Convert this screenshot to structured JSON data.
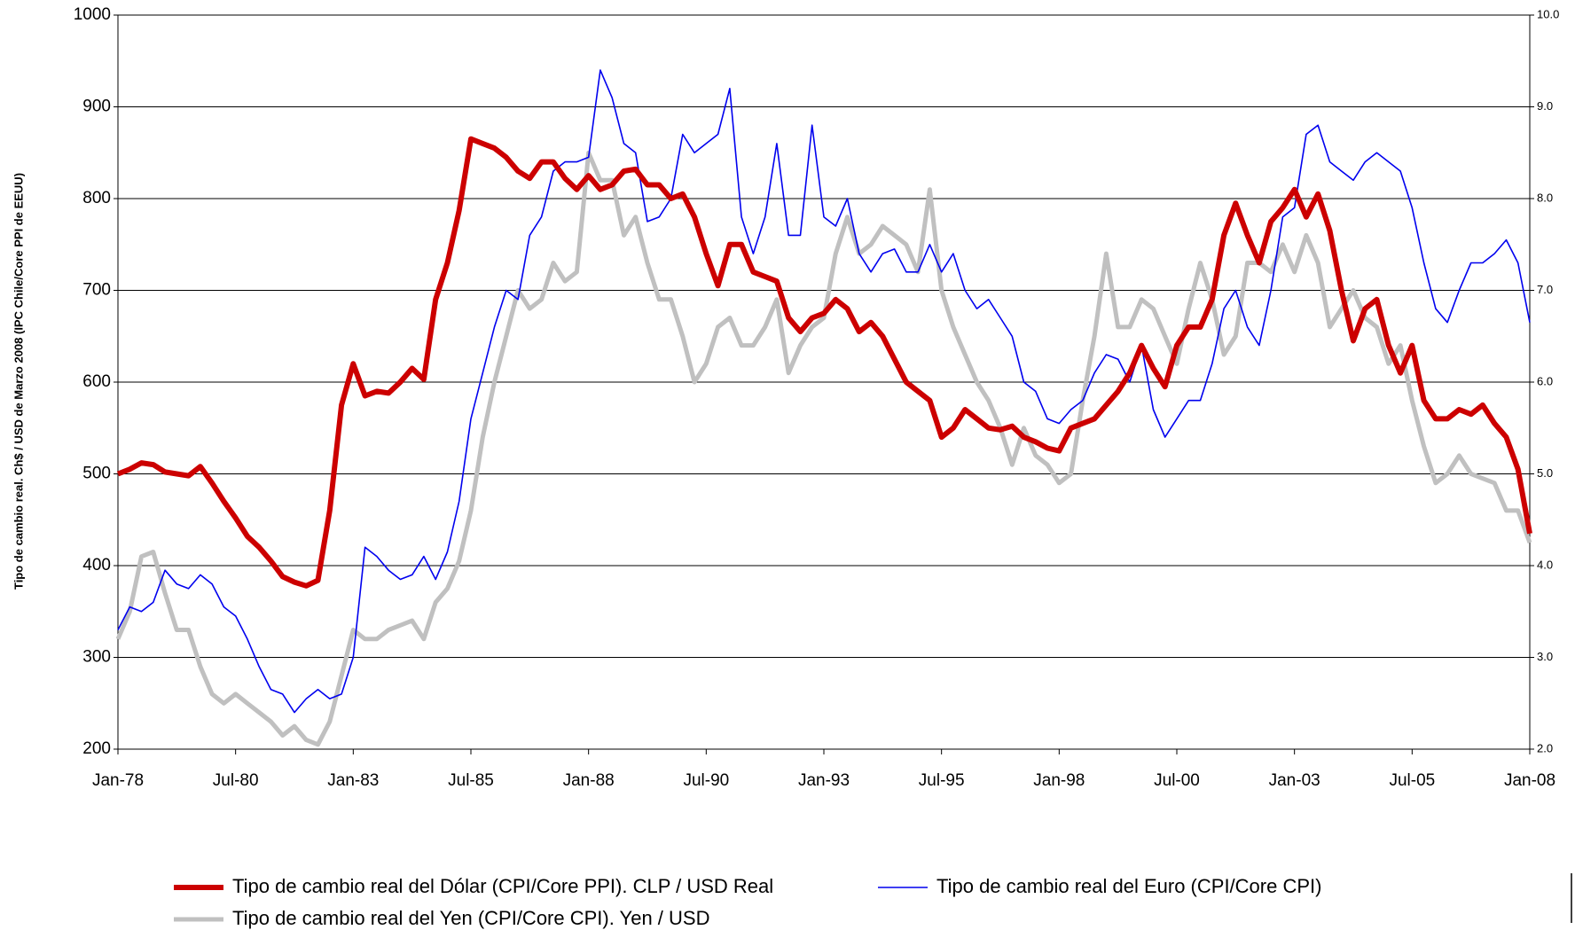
{
  "chart_data": {
    "type": "line",
    "ylabel": "Tipo de cambio real. Ch$ / USD de Marzo 2008 (IPC Chile/Core PPI de EEUU)",
    "categories": [
      "Jan-78",
      null,
      null,
      null,
      null,
      null,
      null,
      null,
      null,
      null,
      "Jul-80",
      null,
      null,
      null,
      null,
      null,
      null,
      null,
      null,
      null,
      "Jan-83",
      null,
      null,
      null,
      null,
      null,
      null,
      null,
      null,
      null,
      "Jul-85",
      null,
      null,
      null,
      null,
      null,
      null,
      null,
      null,
      null,
      "Jan-88",
      null,
      null,
      null,
      null,
      null,
      null,
      null,
      null,
      null,
      "Jul-90",
      null,
      null,
      null,
      null,
      null,
      null,
      null,
      null,
      null,
      "Jan-93",
      null,
      null,
      null,
      null,
      null,
      null,
      null,
      null,
      null,
      "Jul-95",
      null,
      null,
      null,
      null,
      null,
      null,
      null,
      null,
      null,
      "Jan-98",
      null,
      null,
      null,
      null,
      null,
      null,
      null,
      null,
      null,
      "Jul-00",
      null,
      null,
      null,
      null,
      null,
      null,
      null,
      null,
      null,
      "Jan-03",
      null,
      null,
      null,
      null,
      null,
      null,
      null,
      null,
      null,
      "Jul-05",
      null,
      null,
      null,
      null,
      null,
      null,
      null,
      null,
      null,
      "Jan-08"
    ],
    "series": [
      {
        "name": "Tipo de cambio real del Yen (CPI/Core CPI). Yen / USD",
        "color": "#c0c0c0",
        "width": 5,
        "axis": "y2",
        "values": [
          3.2,
          3.5,
          4.1,
          4.15,
          3.7,
          3.3,
          3.3,
          2.9,
          2.6,
          2.5,
          2.6,
          2.5,
          2.4,
          2.3,
          2.15,
          2.25,
          2.1,
          2.05,
          2.3,
          2.8,
          3.3,
          3.2,
          3.2,
          3.3,
          3.35,
          3.4,
          3.2,
          3.6,
          3.75,
          4.05,
          4.6,
          5.4,
          6.0,
          6.5,
          7.0,
          6.8,
          6.9,
          7.3,
          7.1,
          7.2,
          8.5,
          8.2,
          8.2,
          7.6,
          7.8,
          7.3,
          6.9,
          6.9,
          6.5,
          6.0,
          6.2,
          6.6,
          6.7,
          6.4,
          6.4,
          6.6,
          6.9,
          6.1,
          6.4,
          6.6,
          6.7,
          7.4,
          7.8,
          7.4,
          7.5,
          7.7,
          7.6,
          7.5,
          7.2,
          8.1,
          7.0,
          6.6,
          6.3,
          6.0,
          5.8,
          5.5,
          5.1,
          5.5,
          5.2,
          5.1,
          4.9,
          5.0,
          5.8,
          6.5,
          7.4,
          6.6,
          6.6,
          6.9,
          6.8,
          6.5,
          6.2,
          6.8,
          7.3,
          6.9,
          6.3,
          6.5,
          7.3,
          7.3,
          7.2,
          7.5,
          7.2,
          7.6,
          7.3,
          6.6,
          6.8,
          7.0,
          6.7,
          6.6,
          6.2,
          6.4,
          5.8,
          5.3,
          4.9,
          5.0,
          5.2,
          5.0,
          4.95,
          4.9,
          4.6,
          4.6,
          4.25
        ]
      },
      {
        "name": "Tipo de cambio real del Euro (CPI/Core CPI)",
        "color": "#0000ee",
        "width": 1.6,
        "values": [
          330,
          355,
          350,
          360,
          395,
          380,
          375,
          390,
          380,
          355,
          345,
          320,
          290,
          265,
          260,
          240,
          255,
          265,
          255,
          260,
          300,
          420,
          410,
          395,
          385,
          390,
          410,
          385,
          415,
          470,
          560,
          610,
          660,
          700,
          690,
          760,
          780,
          830,
          840,
          840,
          845,
          940,
          910,
          860,
          850,
          775,
          780,
          800,
          870,
          850,
          860,
          870,
          920,
          780,
          740,
          780,
          860,
          760,
          760,
          880,
          780,
          770,
          800,
          740,
          720,
          740,
          745,
          720,
          720,
          750,
          720,
          740,
          700,
          680,
          690,
          670,
          650,
          600,
          590,
          560,
          555,
          570,
          580,
          610,
          630,
          625,
          600,
          640,
          570,
          540,
          560,
          580,
          580,
          620,
          680,
          700,
          660,
          640,
          700,
          780,
          790,
          870,
          880,
          840,
          830,
          820,
          840,
          850,
          840,
          830,
          790,
          730,
          680,
          665,
          700,
          730,
          730,
          740,
          755,
          730,
          665
        ]
      },
      {
        "name": "Tipo de cambio real del Dólar (CPI/Core PPI). CLP / USD Real",
        "color": "#cc0000",
        "width": 6,
        "values": [
          500,
          505,
          512,
          510,
          502,
          500,
          498,
          508,
          490,
          470,
          452,
          432,
          420,
          405,
          388,
          382,
          378,
          384,
          460,
          575,
          620,
          585,
          590,
          588,
          600,
          615,
          603,
          690,
          730,
          787,
          865,
          860,
          855,
          845,
          830,
          822,
          840,
          840,
          822,
          810,
          825,
          810,
          815,
          830,
          832,
          815,
          815,
          800,
          805,
          780,
          740,
          705,
          750,
          750,
          720,
          715,
          710,
          670,
          655,
          670,
          675,
          690,
          680,
          655,
          665,
          650,
          625,
          600,
          590,
          580,
          540,
          550,
          570,
          560,
          550,
          548,
          552,
          540,
          535,
          528,
          525,
          550,
          555,
          560,
          575,
          590,
          610,
          640,
          615,
          595,
          640,
          660,
          660,
          690,
          760,
          795,
          760,
          730,
          775,
          790,
          810,
          780,
          805,
          765,
          700,
          645,
          680,
          690,
          640,
          610,
          640,
          580,
          560,
          560,
          570,
          565,
          575,
          555,
          540,
          505,
          435
        ]
      }
    ],
    "ylim": [
      200,
      1000
    ],
    "yticks": [
      200,
      300,
      400,
      500,
      600,
      700,
      800,
      900,
      1000
    ],
    "y2lim": [
      2,
      10
    ],
    "y2ticks": [
      {
        "value": 2,
        "label": "2.0"
      },
      {
        "value": 3,
        "label": "3.0"
      },
      {
        "value": 4,
        "label": "4.0"
      },
      {
        "value": 5,
        "label": "5.0"
      },
      {
        "value": 6,
        "label": "6.0"
      },
      {
        "value": 7,
        "label": "7.0"
      },
      {
        "value": 8,
        "label": "8.0"
      },
      {
        "value": 9,
        "label": "9.0"
      },
      {
        "value": 10,
        "label": "10.0"
      }
    ],
    "grid": true
  }
}
